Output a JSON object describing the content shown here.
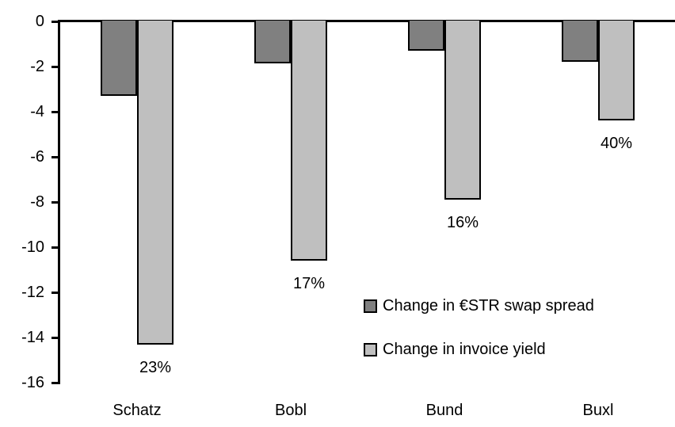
{
  "chart_data": {
    "type": "bar",
    "title": "",
    "xlabel": "",
    "ylabel": "",
    "categories": [
      "Schatz",
      "Bobl",
      "Bund",
      "Buxl"
    ],
    "series": [
      {
        "name": "Change in €STR swap spread",
        "color": "#808080",
        "values": [
          -3.3,
          -1.85,
          -1.3,
          -1.8
        ]
      },
      {
        "name": "Change in invoice yield",
        "color": "#BFBFBF",
        "values": [
          -14.3,
          -10.6,
          -7.9,
          -4.4
        ],
        "point_labels": [
          "23%",
          "17%",
          "16%",
          "40%"
        ]
      }
    ],
    "ylim": [
      -16,
      0
    ],
    "yticks": [
      0,
      -2,
      -4,
      -6,
      -8,
      -10,
      -12,
      -14,
      -16
    ],
    "grid": false,
    "legend_position": "inside-right-middle",
    "axis_color": "#000000",
    "background_color": "#FFFFFF"
  }
}
